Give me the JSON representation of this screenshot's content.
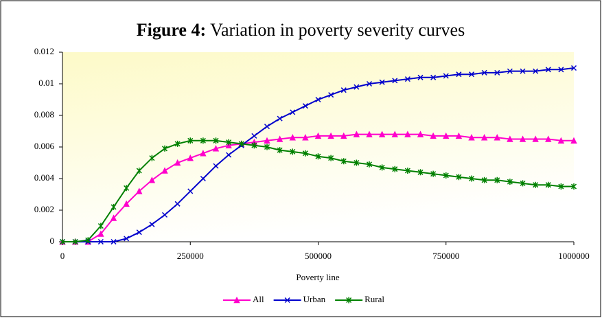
{
  "chart_data": {
    "type": "line",
    "title_label": "Figure 4:",
    "title": "Variation in poverty severity curves",
    "x_label": "Poverty line",
    "x": [
      0,
      25000,
      50000,
      75000,
      100000,
      125000,
      150000,
      175000,
      200000,
      225000,
      250000,
      275000,
      300000,
      325000,
      350000,
      375000,
      400000,
      425000,
      450000,
      475000,
      500000,
      525000,
      550000,
      575000,
      600000,
      625000,
      650000,
      675000,
      700000,
      725000,
      750000,
      775000,
      800000,
      825000,
      850000,
      875000,
      900000,
      925000,
      950000,
      975000,
      1000000
    ],
    "series": [
      {
        "name": "All",
        "color": "#ff00cc",
        "marker": "triangle",
        "values": [
          0,
          0,
          0,
          0.0005,
          0.0015,
          0.0024,
          0.0032,
          0.0039,
          0.0045,
          0.005,
          0.0053,
          0.0056,
          0.0059,
          0.0061,
          0.0062,
          0.0063,
          0.0064,
          0.0065,
          0.0066,
          0.0066,
          0.0067,
          0.0067,
          0.0067,
          0.0068,
          0.0068,
          0.0068,
          0.0068,
          0.0068,
          0.0068,
          0.0067,
          0.0067,
          0.0067,
          0.0066,
          0.0066,
          0.0066,
          0.0065,
          0.0065,
          0.0065,
          0.0065,
          0.0064,
          0.0064
        ]
      },
      {
        "name": "Urban",
        "color": "#0000cc",
        "marker": "x",
        "values": [
          0,
          0,
          0,
          0,
          0,
          0.0002,
          0.0006,
          0.0011,
          0.0017,
          0.0024,
          0.0032,
          0.004,
          0.0048,
          0.0055,
          0.0061,
          0.0067,
          0.0073,
          0.0078,
          0.0082,
          0.0086,
          0.009,
          0.0093,
          0.0096,
          0.0098,
          0.01,
          0.0101,
          0.0102,
          0.0103,
          0.0104,
          0.0104,
          0.0105,
          0.0106,
          0.0106,
          0.0107,
          0.0107,
          0.0108,
          0.0108,
          0.0108,
          0.0109,
          0.0109,
          0.011
        ]
      },
      {
        "name": "Rural",
        "color": "#008000",
        "marker": "star",
        "values": [
          0,
          0,
          0.0001,
          0.001,
          0.0022,
          0.0034,
          0.0045,
          0.0053,
          0.0059,
          0.0062,
          0.0064,
          0.0064,
          0.0064,
          0.0063,
          0.0062,
          0.0061,
          0.006,
          0.0058,
          0.0057,
          0.0056,
          0.0054,
          0.0053,
          0.0051,
          0.005,
          0.0049,
          0.0047,
          0.0046,
          0.0045,
          0.0044,
          0.0043,
          0.0042,
          0.0041,
          0.004,
          0.0039,
          0.0039,
          0.0038,
          0.0037,
          0.0036,
          0.0036,
          0.0035,
          0.0035
        ]
      }
    ],
    "xlim": [
      0,
      1000000
    ],
    "xticks": [
      0,
      250000,
      500000,
      750000,
      1000000
    ],
    "ylim": [
      0,
      0.012
    ],
    "yticks": [
      0,
      0.002,
      0.004,
      0.006,
      0.008,
      0.01,
      0.012
    ],
    "legend": "bottom"
  }
}
